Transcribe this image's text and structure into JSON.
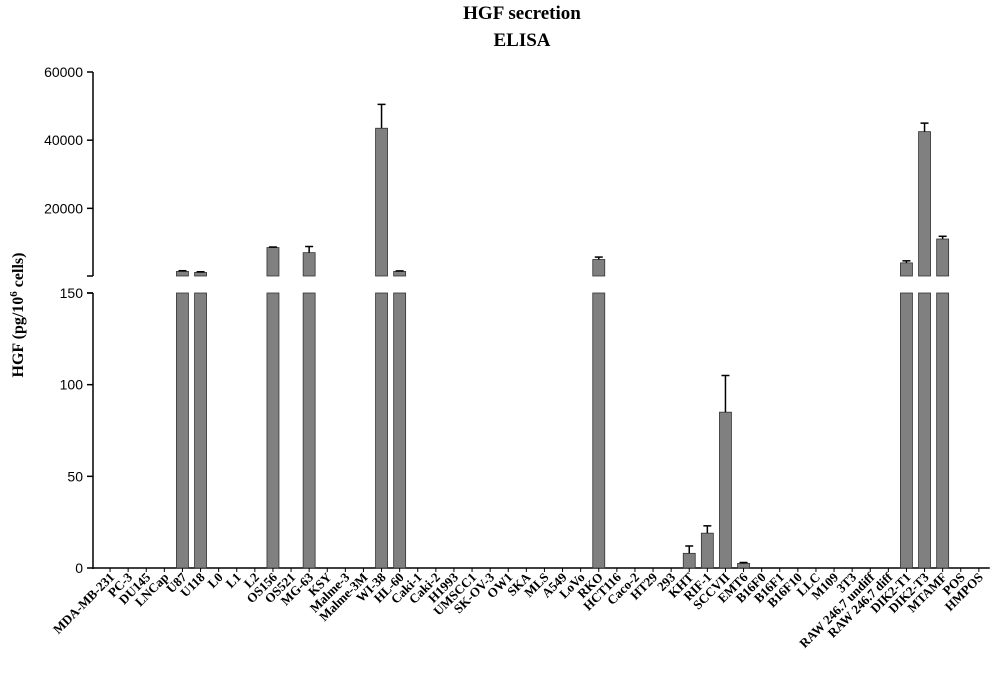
{
  "chart_data": {
    "type": "bar",
    "title": "HGF secretion",
    "subtitle": "ELISA",
    "ylabel_main": "HGF (pg/10",
    "ylabel_sup": "6",
    "ylabel_tail": " cells)",
    "xlabel": "",
    "y_axis_broken": true,
    "lower_range": [
      0,
      150
    ],
    "lower_ticks": [
      "0",
      "50",
      "100",
      "150"
    ],
    "upper_range": [
      150,
      60000
    ],
    "upper_ticks": [
      "20000",
      "40000",
      "60000"
    ],
    "bar_color": "#808080",
    "categories": [
      "MDA-MB-231",
      "PC-3",
      "DU145",
      "LNCap",
      "U87",
      "U118",
      "L0",
      "L1",
      "L2",
      "OS156",
      "OS521",
      "MG-63",
      "KSY",
      "Malme-3",
      "Malme-3M",
      "WI-38",
      "HL-60",
      "Caki-1",
      "Caki-2",
      "H1993",
      "UMSCC1",
      "SK-OV-3",
      "OW1",
      "SKA",
      "MLS",
      "A549",
      "LoVo",
      "RKO",
      "HCT116",
      "Caco-2",
      "HT29",
      "293",
      "KHT",
      "RIF-1",
      "SCCVII",
      "EMT6",
      "B16F0",
      "B16F1",
      "B16F10",
      "LLC",
      "M109",
      "3T3",
      "RAW 246.7 undiff",
      "RAW 246.7 diff",
      "DIK2-T1",
      "DIK2-T3",
      "MTAMF",
      "POS",
      "HMPOS"
    ],
    "values": [
      0,
      0,
      0,
      0,
      1500,
      1200,
      0,
      0,
      0,
      8500,
      0,
      7000,
      0,
      0,
      0,
      43500,
      1500,
      0,
      0,
      0,
      0,
      0,
      0,
      0,
      0,
      0,
      0,
      5000,
      0,
      0,
      0,
      0,
      8,
      19,
      85,
      2.5,
      0,
      0,
      0,
      0,
      0,
      0,
      0,
      0,
      4000,
      42500,
      11000,
      0,
      0
    ],
    "errors": [
      0,
      0,
      0,
      0,
      200,
      200,
      0,
      0,
      0,
      150,
      0,
      1800,
      0,
      0,
      0,
      7000,
      150,
      0,
      0,
      0,
      0,
      0,
      0,
      0,
      0,
      0,
      0,
      700,
      0,
      0,
      0,
      0,
      4,
      4,
      20,
      0.5,
      0,
      0,
      0,
      0,
      0,
      0,
      0,
      0,
      600,
      2500,
      800,
      0,
      0
    ]
  }
}
